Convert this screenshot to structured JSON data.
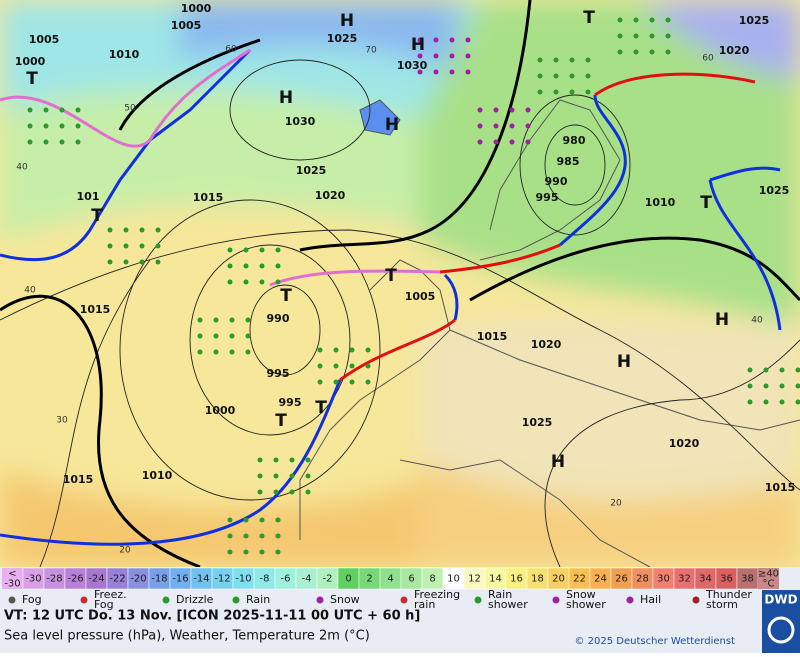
{
  "map": {
    "pressure_labels": [
      1000,
      1005,
      1005,
      1010,
      1000,
      1025,
      1030,
      1030,
      1025,
      1020,
      1015,
      1015,
      1005,
      990,
      995,
      995,
      1000,
      1010,
      1015,
      1015,
      1020,
      1025,
      1020,
      1015,
      1025,
      1020,
      1025,
      1010,
      980,
      985,
      990,
      995,
      101
    ],
    "centers": [
      "H",
      "H",
      "H",
      "H",
      "H",
      "H",
      "H",
      "T",
      "T",
      "T",
      "T",
      "T",
      "T",
      "T",
      "T"
    ],
    "grid_labels": [
      60,
      70,
      60,
      50,
      40,
      40,
      30,
      20,
      20,
      40
    ]
  },
  "legend": {
    "scale_low": "<\n-30",
    "scale_high": "≥40\n°C",
    "scale_values": [
      -30,
      -28,
      -26,
      -24,
      -22,
      -20,
      -18,
      -16,
      -14,
      -12,
      -10,
      -8,
      -6,
      -4,
      -2,
      0,
      2,
      4,
      6,
      8,
      10,
      12,
      14,
      16,
      18,
      20,
      22,
      24,
      26,
      28,
      30,
      32,
      34,
      36,
      38
    ],
    "scale_colors": [
      "#d9a0e8",
      "#c890e0",
      "#b880d8",
      "#a878d0",
      "#9880d8",
      "#8890e0",
      "#78a0e8",
      "#70b0f0",
      "#70c0f0",
      "#78d0f0",
      "#80e0f0",
      "#90e8e8",
      "#a0f0e0",
      "#a8f0d0",
      "#b0f0c0",
      "#60d060",
      "#78d878",
      "#90e090",
      "#a8e8a0",
      "#c0f0b0",
      "#fcfcfc",
      "#f8f8c0",
      "#f8f8a0",
      "#f8f080",
      "#f8e070",
      "#f8d060",
      "#f8c050",
      "#f8b050",
      "#f0a050",
      "#f09060",
      "#f08070",
      "#e87070",
      "#e06868",
      "#d86060",
      "#b87070"
    ],
    "weather": [
      "Fog",
      "Freez.\nFog",
      "Drizzle",
      "Rain",
      "Snow",
      "Freezing\nrain",
      "Rain\nshower",
      "Snow\nshower",
      "Hail",
      "Thunder\nstorm"
    ]
  },
  "footer": {
    "valid_time": "VT: 12 UTC Do.  13 Nov. [ICON 2025-11-11  00 UTC + 60 h]",
    "subtitle": "Sea level pressure (hPa), Weather, Temperature 2m (°C)",
    "copyright": "© 2025 Deutscher Wetterdienst",
    "logo": "DWD"
  }
}
